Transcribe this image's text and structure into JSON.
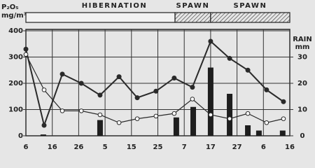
{
  "chart_data": {
    "type": "line",
    "ylabel": {
      "text": "P₂O₅",
      "unit": "mg/m³"
    },
    "y2label": [
      "RAIN",
      "mm"
    ],
    "phases": [
      {
        "label": "HIBERNATION",
        "start": 0,
        "end": 5.65,
        "hatched": false
      },
      {
        "label": "SPAWN",
        "start": 5.65,
        "end": 7,
        "hatched": true
      },
      {
        "label": "SPAWN",
        "start": 7,
        "end": 10,
        "hatched": true
      }
    ],
    "xlim": [
      0,
      10
    ],
    "xticks": [
      {
        "value": 0,
        "label": "6"
      },
      {
        "value": 1,
        "label": "16"
      },
      {
        "value": 2,
        "label": "26"
      },
      {
        "value": 3,
        "label": "5"
      },
      {
        "value": 4,
        "label": "15"
      },
      {
        "value": 5,
        "label": "25"
      },
      {
        "value": 6,
        "label": "7"
      },
      {
        "value": 7,
        "label": "17"
      },
      {
        "value": 8,
        "label": "27"
      },
      {
        "value": 9,
        "label": "6"
      },
      {
        "value": 10,
        "label": "16"
      }
    ],
    "ylim": [
      0,
      400
    ],
    "yticks": [
      0,
      100,
      200,
      300,
      400
    ],
    "y2lim": [
      0,
      40
    ],
    "y2ticks": [
      0,
      10,
      20,
      30
    ],
    "grid": true,
    "series": [
      {
        "type": "line",
        "marker": "filled",
        "color": "#2a2a2a",
        "x": [
          0,
          0.69,
          1.38,
          2.1,
          2.81,
          3.53,
          4.22,
          4.93,
          5.62,
          6.31,
          7,
          7.72,
          8.41,
          9.12,
          9.76
        ],
        "values": [
          330,
          40,
          235,
          200,
          155,
          225,
          145,
          170,
          220,
          185,
          360,
          295,
          250,
          175,
          130
        ]
      },
      {
        "type": "line",
        "marker": "open",
        "color": "#2a2a2a",
        "x": [
          0,
          0.69,
          1.38,
          2.1,
          2.81,
          3.53,
          4.22,
          4.93,
          5.62,
          6.31,
          7,
          7.72,
          8.41,
          9.12,
          9.76
        ],
        "values": [
          310,
          175,
          95,
          95,
          80,
          50,
          65,
          75,
          85,
          140,
          80,
          65,
          85,
          50,
          65
        ]
      },
      {
        "type": "bar",
        "axis": "y2",
        "color": "#1e1e1e",
        "x": [
          0.66,
          2.81,
          5.7,
          6.34,
          7,
          7.72,
          8.41,
          8.83,
          9.73
        ],
        "values": [
          0.5,
          6,
          7,
          11,
          26,
          16,
          4,
          2,
          2
        ]
      }
    ]
  }
}
